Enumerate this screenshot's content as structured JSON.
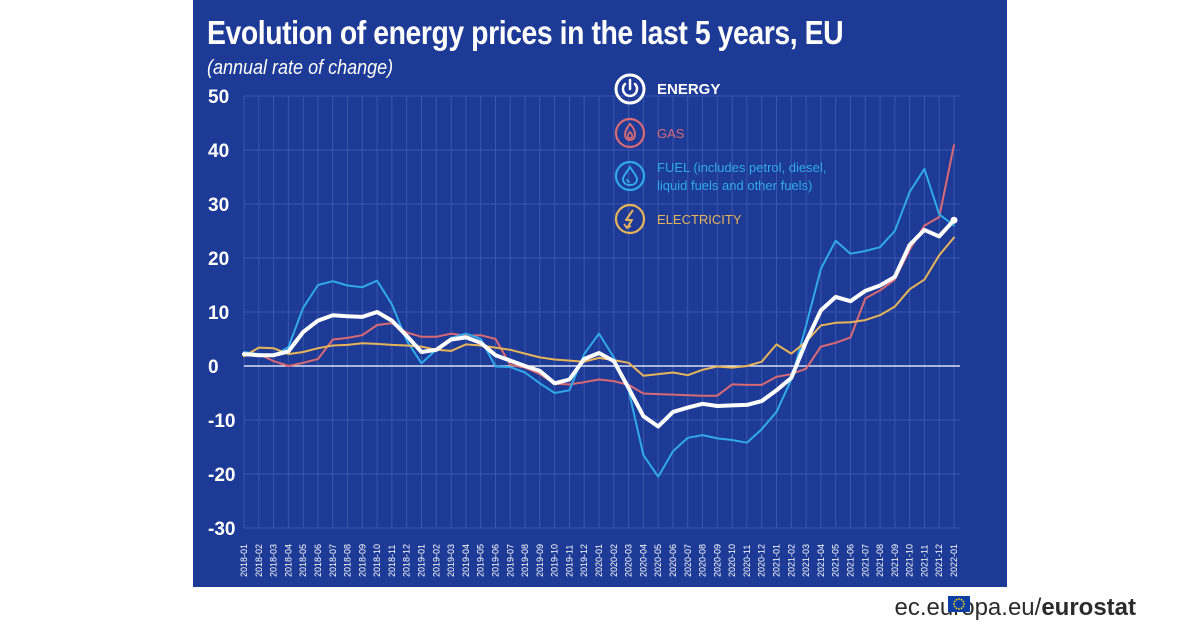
{
  "header": {
    "title": "Evolution of energy prices in the last 5 years, EU",
    "subtitle": "(annual rate of change)"
  },
  "footer": {
    "source_plain": "ec.europa.eu/",
    "source_bold": "eurostat",
    "flag_icon": "eu-flag-icon"
  },
  "colors": {
    "background": "#1d3a96",
    "energy": "#ffffff",
    "gas": "#d96a73",
    "fuel": "#30a9ea",
    "electricity": "#e8b45a"
  },
  "chart_data": {
    "type": "line",
    "ylim": [
      -30,
      50
    ],
    "yticks": [
      -30,
      -20,
      -10,
      0,
      10,
      20,
      30,
      40,
      50
    ],
    "grid": true,
    "legend_position": "top-right",
    "categories": [
      "2018-01",
      "2018-02",
      "2018-03",
      "2018-04",
      "2018-05",
      "2018-06",
      "2018-07",
      "2018-08",
      "2018-09",
      "2018-10",
      "2018-11",
      "2018-12",
      "2019-01",
      "2019-02",
      "2019-03",
      "2019-04",
      "2019-05",
      "2019-06",
      "2019-07",
      "2019-08",
      "2019-09",
      "2019-10",
      "2019-11",
      "2019-12",
      "2020-01",
      "2020-02",
      "2020-03",
      "2020-04",
      "2020-05",
      "2020-06",
      "2020-07",
      "2020-08",
      "2020-09",
      "2020-10",
      "2020-11",
      "2020-12",
      "2021-01",
      "2021-02",
      "2021-03",
      "2021-04",
      "2021-05",
      "2021-06",
      "2021-07",
      "2021-08",
      "2021-09",
      "2021-10",
      "2021-11",
      "2021-12",
      "2022-01"
    ],
    "series": [
      {
        "name": "GAS",
        "key": "gas",
        "icon": "flame-icon",
        "values": [
          1.9,
          2.2,
          0.9,
          0.0,
          0.6,
          1.3,
          4.9,
          5.2,
          5.7,
          7.6,
          7.9,
          6.2,
          5.4,
          5.4,
          6.0,
          5.6,
          5.7,
          5.0,
          0.2,
          -0.3,
          -1.5,
          -3.3,
          -3.4,
          -3.0,
          -2.5,
          -2.8,
          -3.5,
          -5.1,
          -5.2,
          -5.3,
          -5.4,
          -5.5,
          -5.5,
          -3.4,
          -3.5,
          -3.5,
          -2.0,
          -1.5,
          -0.5,
          3.6,
          4.3,
          5.3,
          12.5,
          14.0,
          16.0,
          21.5,
          26.0,
          27.6,
          40.9
        ]
      },
      {
        "name": "FUEL (includes petrol, diesel, liquid fuels and other fuels)",
        "key": "fuel",
        "icon": "droplet-icon",
        "values": [
          2.6,
          2.2,
          1.9,
          3.5,
          10.8,
          15.0,
          15.7,
          14.9,
          14.6,
          15.8,
          11.4,
          4.7,
          0.5,
          3.0,
          5.2,
          6.0,
          5.0,
          -0.1,
          -0.2,
          -1.2,
          -3.2,
          -5.0,
          -4.5,
          2.2,
          6.0,
          1.6,
          -4.5,
          -16.5,
          -20.5,
          -15.8,
          -13.3,
          -12.8,
          -13.4,
          -13.7,
          -14.2,
          -11.7,
          -8.5,
          -2.5,
          7.5,
          18.0,
          23.2,
          20.8,
          21.3,
          22.0,
          25.0,
          32.2,
          36.5,
          28.1,
          26.0
        ]
      },
      {
        "name": "ELECTRICITY",
        "key": "electricity",
        "icon": "lightning-icon",
        "values": [
          1.8,
          3.4,
          3.3,
          2.2,
          2.6,
          3.3,
          3.8,
          3.9,
          4.2,
          4.1,
          3.9,
          3.8,
          3.6,
          3.0,
          2.8,
          4.0,
          3.8,
          3.4,
          3.0,
          2.3,
          1.6,
          1.2,
          1.0,
          0.8,
          1.5,
          1.1,
          0.6,
          -1.8,
          -1.5,
          -1.2,
          -1.7,
          -0.7,
          -0.1,
          -0.3,
          0.0,
          0.8,
          4.0,
          2.3,
          4.5,
          7.5,
          8.0,
          8.1,
          8.5,
          9.4,
          11.0,
          14.2,
          16.0,
          20.5,
          23.8
        ]
      },
      {
        "name": "ENERGY",
        "key": "energy",
        "icon": "power-icon",
        "values": [
          2.2,
          2.0,
          2.0,
          2.7,
          6.3,
          8.4,
          9.4,
          9.2,
          9.1,
          10.0,
          8.4,
          5.6,
          2.6,
          3.0,
          4.9,
          5.3,
          4.3,
          2.0,
          1.0,
          0.0,
          -0.9,
          -3.2,
          -2.5,
          1.3,
          2.4,
          0.9,
          -4.1,
          -9.3,
          -11.2,
          -8.5,
          -7.7,
          -7.0,
          -7.4,
          -7.3,
          -7.2,
          -6.5,
          -4.5,
          -2.2,
          4.5,
          10.3,
          12.8,
          12.0,
          13.9,
          14.9,
          16.5,
          22.4,
          25.2,
          24.0,
          27.0
        ]
      }
    ]
  }
}
